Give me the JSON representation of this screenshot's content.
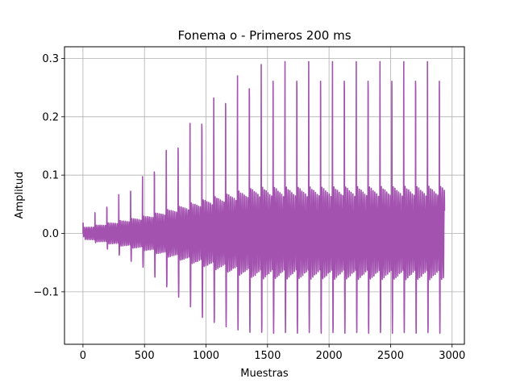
{
  "chart_data": {
    "type": "line",
    "title": "Fonema o - Primeros 200 ms",
    "xlabel": "Muestras",
    "ylabel": "Amplitud",
    "xlim": [
      -150,
      3100
    ],
    "ylim": [
      -0.19,
      0.32
    ],
    "x_ticks": [
      0,
      500,
      1000,
      1500,
      2000,
      2500,
      3000
    ],
    "x_tick_labels": [
      "0",
      "500",
      "1000",
      "1500",
      "2000",
      "2500",
      "3000"
    ],
    "y_ticks": [
      -0.1,
      0.0,
      0.1,
      0.2,
      0.3
    ],
    "y_tick_labels": [
      "−0.1",
      "0.0",
      "0.1",
      "0.2",
      "0.3"
    ],
    "grid": true,
    "legend": "none",
    "series": [
      {
        "color": "#a352b0",
        "signal": {
          "n_samples": 2940,
          "period_samples": 96.5,
          "peak_envelope": [
            [
              0,
              0.02
            ],
            [
              500,
              0.1
            ],
            [
              1000,
              0.22
            ],
            [
              1250,
              0.27
            ],
            [
              1500,
              0.295
            ],
            [
              2940,
              0.295
            ]
          ],
          "trough_envelope": [
            [
              0,
              -0.005
            ],
            [
              500,
              -0.06
            ],
            [
              1000,
              -0.15
            ],
            [
              1300,
              -0.17
            ],
            [
              1500,
              -0.172
            ],
            [
              2940,
              -0.172
            ]
          ],
          "inner_envelope": [
            [
              0,
              0.01
            ],
            [
              500,
              0.03
            ],
            [
              1000,
              0.06
            ],
            [
              1400,
              0.08
            ],
            [
              2940,
              0.082
            ]
          ]
        }
      }
    ]
  }
}
